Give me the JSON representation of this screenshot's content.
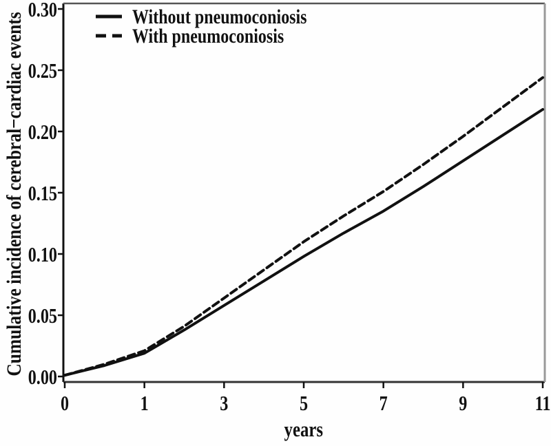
{
  "figure": {
    "background": "#fefefe",
    "ink_color": "#111111",
    "frame_gray": "#999999"
  },
  "chart_data": {
    "type": "line",
    "title": "",
    "xlabel": "years",
    "ylabel": "Cumulative incidence of cerebral−cardiac events",
    "x_ticks": [
      "0",
      "1",
      "3",
      "5",
      "7",
      "9",
      "11"
    ],
    "x_tick_values": [
      0,
      1,
      3,
      5,
      7,
      9,
      11
    ],
    "x_axis_note": "tick marks evenly spaced as drawn in source figure",
    "y_ticks": [
      "0.00",
      "0.05",
      "0.10",
      "0.15",
      "0.20",
      "0.25",
      "0.30"
    ],
    "y_tick_values": [
      0.0,
      0.05,
      0.1,
      0.15,
      0.2,
      0.25,
      0.3
    ],
    "ylim": [
      0.0,
      0.3
    ],
    "xlim_years": [
      0,
      11
    ],
    "grid": false,
    "legend_position": "top-left-inside",
    "series": [
      {
        "name": "Without pneumoconiosis",
        "style": "solid",
        "color": "#111111",
        "points": [
          [
            0,
            0.001
          ],
          [
            0.5,
            0.009
          ],
          [
            1,
            0.019
          ],
          [
            2,
            0.038
          ],
          [
            3,
            0.058
          ],
          [
            4,
            0.078
          ],
          [
            5,
            0.098
          ],
          [
            6,
            0.117
          ],
          [
            7,
            0.135
          ],
          [
            8,
            0.155
          ],
          [
            9,
            0.176
          ],
          [
            10,
            0.197
          ],
          [
            11,
            0.218
          ]
        ]
      },
      {
        "name": "With pneumoconiosis",
        "style": "dashed",
        "color": "#111111",
        "points": [
          [
            0,
            0.001
          ],
          [
            0.5,
            0.01
          ],
          [
            1,
            0.021
          ],
          [
            2,
            0.041
          ],
          [
            3,
            0.064
          ],
          [
            4,
            0.087
          ],
          [
            5,
            0.11
          ],
          [
            6,
            0.131
          ],
          [
            7,
            0.151
          ],
          [
            8,
            0.173
          ],
          [
            9,
            0.196
          ],
          [
            10,
            0.22
          ],
          [
            11,
            0.244
          ]
        ]
      }
    ]
  }
}
